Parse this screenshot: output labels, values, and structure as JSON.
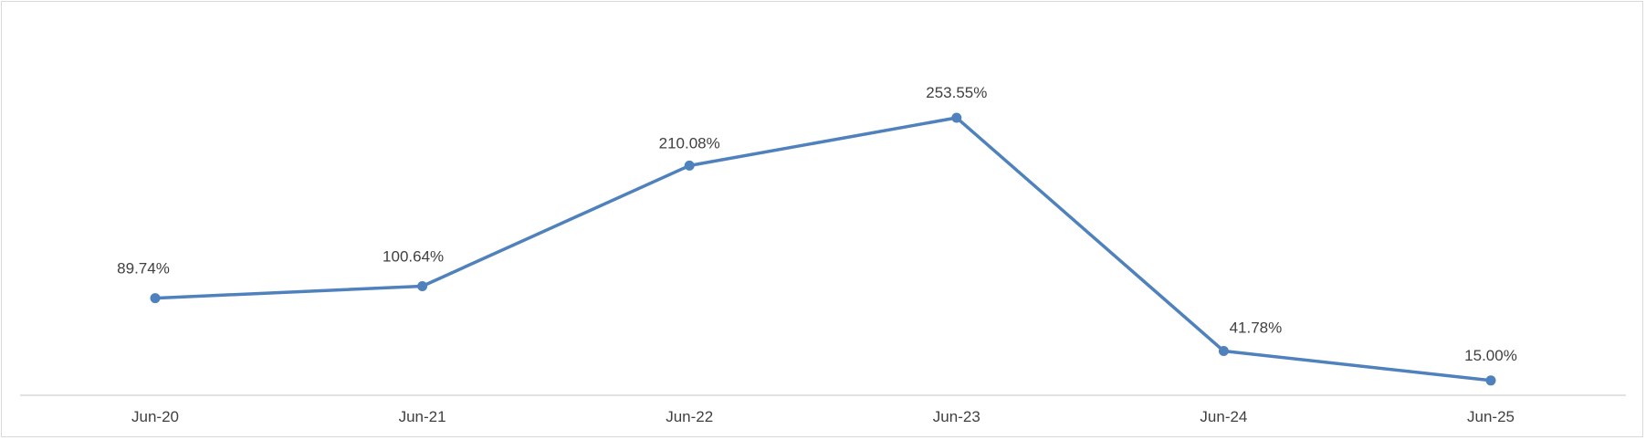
{
  "chart_data": {
    "type": "line",
    "title": "",
    "xlabel": "",
    "ylabel": "",
    "categories": [
      "Jun-20",
      "Jun-21",
      "Jun-22",
      "Jun-23",
      "Jun-24",
      "Jun-25"
    ],
    "series": [
      {
        "values": [
          89.74,
          100.64,
          210.08,
          253.55,
          41.78,
          15.0
        ],
        "labels": [
          "89.74%",
          "100.64%",
          "210.08%",
          "253.55%",
          "41.78%",
          "15.00%"
        ],
        "color": "#4f81bd"
      }
    ],
    "ylim": [
      0,
      260
    ],
    "y_axis_visible": false,
    "grid": false,
    "legend": "none"
  }
}
